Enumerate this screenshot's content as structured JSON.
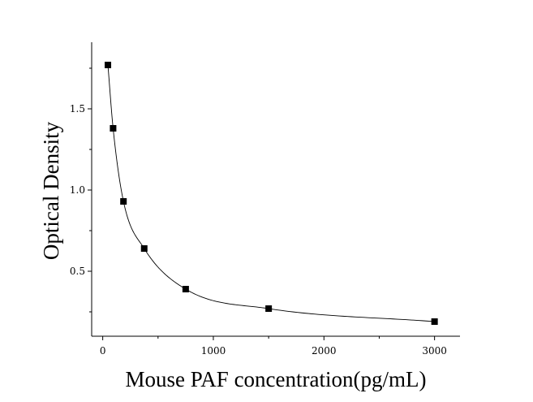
{
  "chart_data": {
    "type": "scatter",
    "title": "",
    "xlabel": "Mouse PAF concentration(pg/mL)",
    "ylabel": "Optical Density",
    "xlim": [
      -100,
      3230
    ],
    "ylim": [
      0.1,
      1.91
    ],
    "x_ticks": [
      0,
      1000,
      2000,
      3000
    ],
    "x_tick_labels": [
      "0",
      "1000",
      "2000",
      "3000"
    ],
    "y_ticks": [
      0.5,
      1.0,
      1.5
    ],
    "y_tick_labels": [
      "0.5",
      "1.0",
      "1.5"
    ],
    "grid": false,
    "legend": "none",
    "marker": "square",
    "fit_line": "smooth curve through points",
    "series": [
      {
        "x": [
          46.875,
          93.75,
          187.5,
          375,
          750,
          1500,
          3000
        ],
        "y": [
          1.77,
          1.38,
          0.93,
          0.64,
          0.39,
          0.27,
          0.19
        ]
      }
    ],
    "colors": {
      "points": "#000000",
      "line": "#000000",
      "axes": "#000000"
    }
  }
}
